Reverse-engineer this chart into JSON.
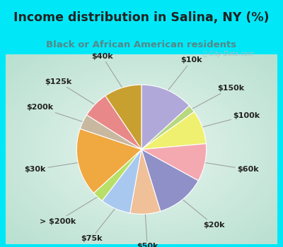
{
  "title": "Income distribution in Salina, NY (%)",
  "subtitle": "Black or African American residents",
  "bg_cyan": "#00e8f8",
  "bg_chart_center": "#e8f5ef",
  "bg_chart_edge": "#c8ece0",
  "slices": [
    {
      "label": "$10k",
      "value": 14,
      "color": "#b0a8d8"
    },
    {
      "label": "$150k",
      "value": 2,
      "color": "#b8d880"
    },
    {
      "label": "$100k",
      "value": 9,
      "color": "#f0f070"
    },
    {
      "label": "$60k",
      "value": 10,
      "color": "#f4a8b0"
    },
    {
      "label": "$20k",
      "value": 13,
      "color": "#9090c8"
    },
    {
      "label": "$50k",
      "value": 8,
      "color": "#f0c098"
    },
    {
      "label": "$75k",
      "value": 8,
      "color": "#a8c8f0"
    },
    {
      "label": "> $200k",
      "value": 3,
      "color": "#b8e068"
    },
    {
      "label": "$30k",
      "value": 18,
      "color": "#f0a840"
    },
    {
      "label": "$200k",
      "value": 4,
      "color": "#c8b8a0"
    },
    {
      "label": "$125k",
      "value": 7,
      "color": "#e88888"
    },
    {
      "label": "$40k",
      "value": 10,
      "color": "#c8a030"
    }
  ],
  "title_fontsize": 12.5,
  "subtitle_fontsize": 9.5,
  "label_fontsize": 8,
  "figsize": [
    4.0,
    3.5
  ],
  "dpi": 100,
  "title_color": "#222222",
  "subtitle_color": "#558888",
  "watermark_color": "#bbbbbb"
}
